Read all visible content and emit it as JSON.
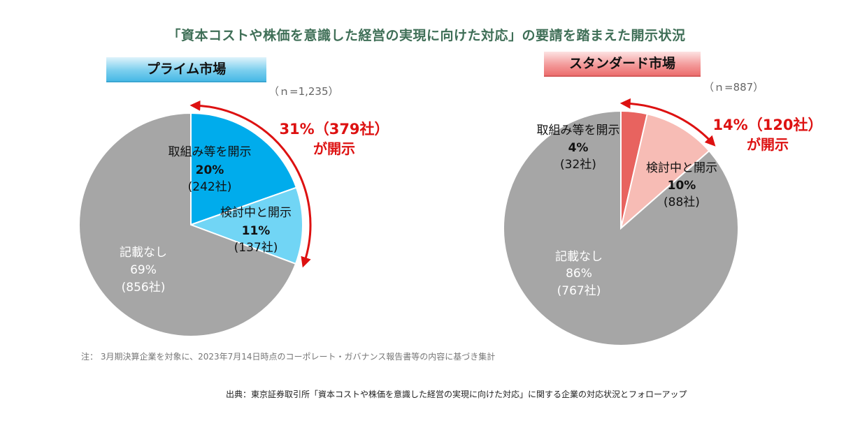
{
  "title": "「資本コストや株価を意識した経営の実現に向けた対応」の要請を踏まえた開示状況",
  "note": "注： 3月期決算企業を対象に、2023年7月14日時点のコーポレート・ガバナンス報告書等の内容に基づき集計",
  "source": "出典：東京証券取引所「資本コストや株価を意識した経営の実現に向けた対応」に関する企業の対応状況とフォローアップ",
  "chart_data": [
    {
      "type": "pie",
      "title": "プライム市場",
      "n_label": "（ｎ=1,235）",
      "total": 1235,
      "disclosed_label": [
        "31%（379社）",
        "が開示"
      ],
      "colors": {
        "disclosed": "#00acec",
        "considering": "#71d5f5",
        "none": "#a6a6a6",
        "arrow": "#dd1111"
      },
      "slices": [
        {
          "name": "取組み等を開示",
          "percent": "20%",
          "count": "(242社)",
          "value": 242
        },
        {
          "name": "検討中と開示",
          "percent": "11%",
          "count": "(137社)",
          "value": 137
        },
        {
          "name": "記載なし",
          "percent": "69%",
          "count": "(856社)",
          "value": 856
        }
      ]
    },
    {
      "type": "pie",
      "title": "スタンダード市場",
      "n_label": "（ｎ=887）",
      "total": 887,
      "disclosed_label": [
        "14%（120社）",
        "が開示"
      ],
      "colors": {
        "disclosed": "#e8635f",
        "considering": "#f7bcb5",
        "none": "#a6a6a6",
        "arrow": "#dd1111"
      },
      "slices": [
        {
          "name": "取組み等を開示",
          "percent": "4%",
          "count": "(32社)",
          "value": 32
        },
        {
          "name": "検討中と開示",
          "percent": "10%",
          "count": "(88社)",
          "value": 88
        },
        {
          "name": "記載なし",
          "percent": "86%",
          "count": "(767社)",
          "value": 767
        }
      ]
    }
  ]
}
